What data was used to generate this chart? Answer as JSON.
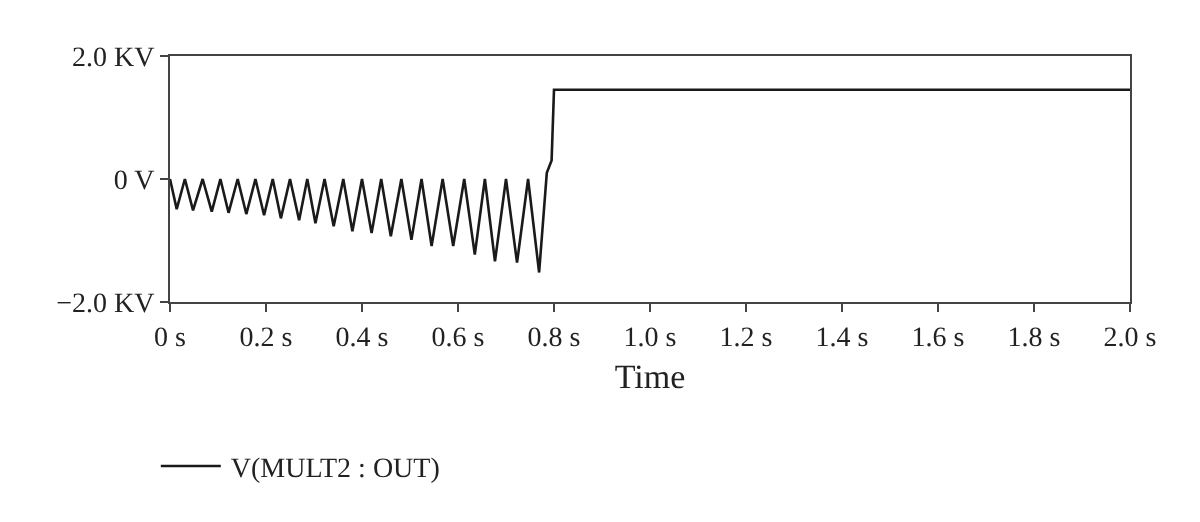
{
  "chart_data": {
    "type": "line",
    "xlabel": "Time",
    "legend": "bottom left",
    "marker": "none",
    "line_style": "solid",
    "grid": false,
    "xlim": [
      0,
      2.0
    ],
    "xticks": [
      {
        "value": 0,
        "label": "0 s"
      },
      {
        "value": 0.2,
        "label": "0.2 s"
      },
      {
        "value": 0.4,
        "label": "0.4 s"
      },
      {
        "value": 0.6,
        "label": "0.6 s"
      },
      {
        "value": 0.8,
        "label": "0.8 s"
      },
      {
        "value": 1.0,
        "label": "1.0 s"
      },
      {
        "value": 1.2,
        "label": "1.2 s"
      },
      {
        "value": 1.4,
        "label": "1.4 s"
      },
      {
        "value": 1.6,
        "label": "1.6 s"
      },
      {
        "value": 1.8,
        "label": "1.8 s"
      },
      {
        "value": 2.0,
        "label": "2.0 s"
      }
    ],
    "ylim": [
      -2.0,
      2.0
    ],
    "yticks": [
      {
        "value": -2.0,
        "label": "−2.0 KV"
      },
      {
        "value": 0,
        "label": "0 V"
      },
      {
        "value": 2.0,
        "label": "2.0 KV"
      }
    ],
    "series": [
      {
        "name": "V(MULT2 : OUT)",
        "color": "#1a1a1a",
        "x": [
          0,
          0.014,
          0.031,
          0.048,
          0.068,
          0.087,
          0.105,
          0.122,
          0.141,
          0.159,
          0.178,
          0.196,
          0.214,
          0.231,
          0.25,
          0.269,
          0.286,
          0.303,
          0.322,
          0.341,
          0.361,
          0.38,
          0.4,
          0.42,
          0.44,
          0.46,
          0.482,
          0.503,
          0.524,
          0.545,
          0.568,
          0.59,
          0.613,
          0.635,
          0.656,
          0.677,
          0.7,
          0.723,
          0.746,
          0.769,
          0.785,
          0.795,
          0.8,
          2.0
        ],
        "values": [
          0,
          -0.49,
          0,
          -0.51,
          0,
          -0.53,
          0,
          -0.55,
          0,
          -0.57,
          0,
          -0.59,
          0,
          -0.64,
          0,
          -0.67,
          0,
          -0.72,
          0,
          -0.77,
          0,
          -0.85,
          0,
          -0.88,
          0,
          -0.93,
          0,
          -0.99,
          0,
          -1.09,
          0,
          -1.09,
          0,
          -1.23,
          0,
          -1.34,
          0,
          -1.36,
          0,
          -1.52,
          0.1,
          0.3,
          1.45,
          1.45
        ]
      }
    ]
  }
}
